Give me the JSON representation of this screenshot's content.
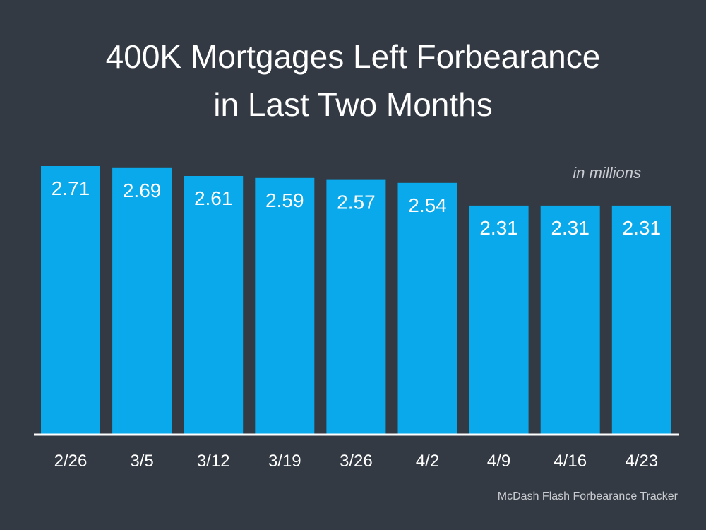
{
  "title_lines": [
    "400K Mortgages Left Forbearance",
    "in Last Two Months"
  ],
  "unit_note": "in millions",
  "source": "McDash Flash Forbearance Tracker",
  "colors": {
    "background": "#333a43",
    "bar": "#0aa9ec",
    "text": "#ffffff",
    "muted_text": "#c9ccd0"
  },
  "chart_data": {
    "type": "bar",
    "title": "400K Mortgages Left Forbearance in Last Two Months",
    "xlabel": "",
    "ylabel": "",
    "ylim": [
      0,
      2.71
    ],
    "grid": false,
    "legend": "none",
    "categories": [
      "2/26",
      "3/5",
      "3/12",
      "3/19",
      "3/26",
      "4/2",
      "4/9",
      "4/16",
      "4/23"
    ],
    "values": [
      2.71,
      2.69,
      2.61,
      2.59,
      2.57,
      2.54,
      2.31,
      2.31,
      2.31
    ],
    "data_labels": [
      "2.71",
      "2.69",
      "2.61",
      "2.59",
      "2.57",
      "2.54",
      "2.31",
      "2.31",
      "2.31"
    ]
  }
}
